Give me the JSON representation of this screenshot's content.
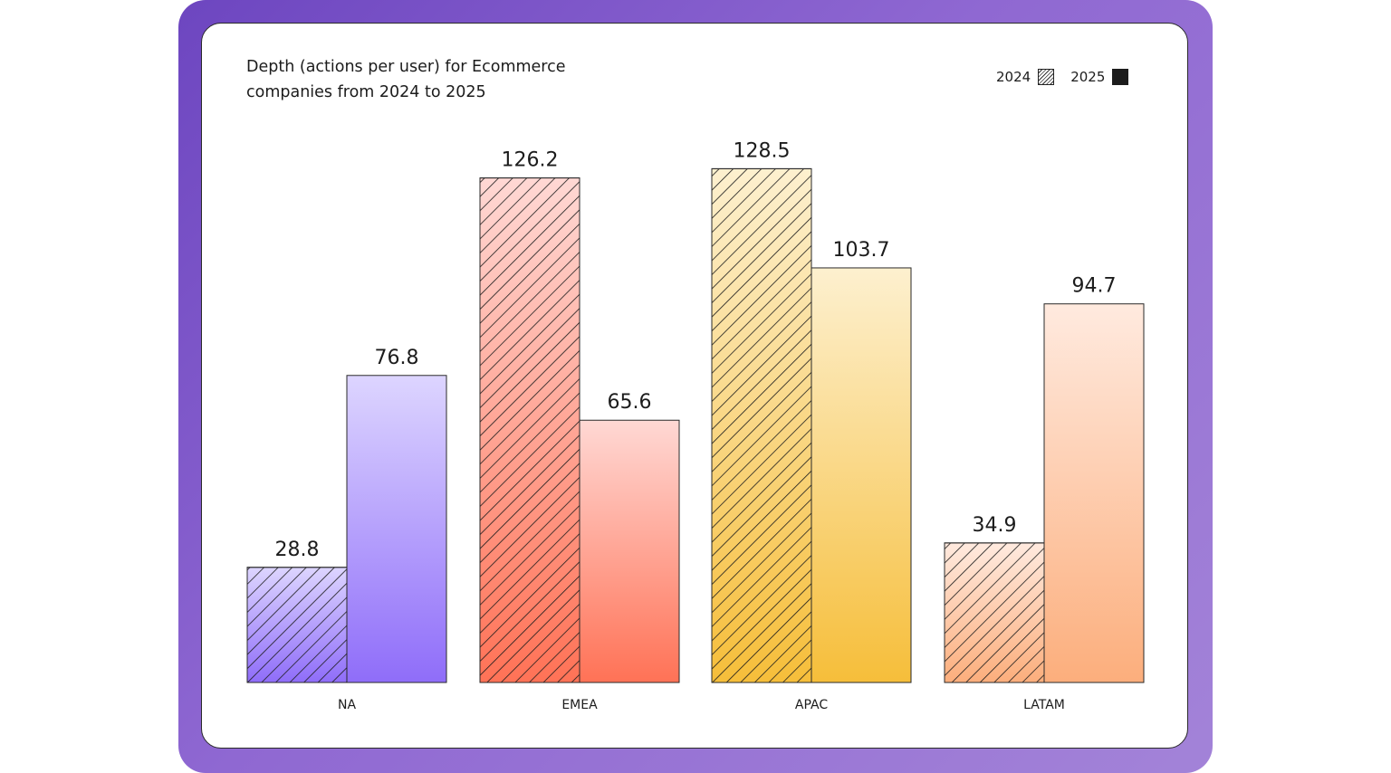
{
  "chart_data": {
    "type": "bar",
    "title": "Depth (actions per user) for Ecommerce companies from 2024 to 2025",
    "categories": [
      "NA",
      "EMEA",
      "APAC",
      "LATAM"
    ],
    "series": [
      {
        "name": "2024",
        "style": "hatched",
        "values": [
          28.8,
          126.2,
          128.5,
          34.9
        ]
      },
      {
        "name": "2025",
        "style": "solid",
        "values": [
          76.8,
          65.6,
          103.7,
          94.7
        ]
      }
    ],
    "value_labels": [
      [
        "28.8",
        "76.8"
      ],
      [
        "126.2",
        "65.6"
      ],
      [
        "128.5",
        "103.7"
      ],
      [
        "34.9",
        "94.7"
      ]
    ],
    "legend_position": "top-right",
    "grid": false,
    "colors": {
      "NA": {
        "top": "#ddd5ff",
        "bottom": "#8f6df9"
      },
      "EMEA": {
        "top": "#ffd8d4",
        "bottom": "#ff7256"
      },
      "APAC": {
        "top": "#fdf0cf",
        "bottom": "#f6be3a"
      },
      "LATAM": {
        "top": "#ffeadf",
        "bottom": "#fcae7c"
      }
    }
  },
  "legend": {
    "items": [
      {
        "label": "2024",
        "icon": "hatched-swatch-icon"
      },
      {
        "label": "2025",
        "icon": "solid-swatch-icon"
      }
    ]
  }
}
